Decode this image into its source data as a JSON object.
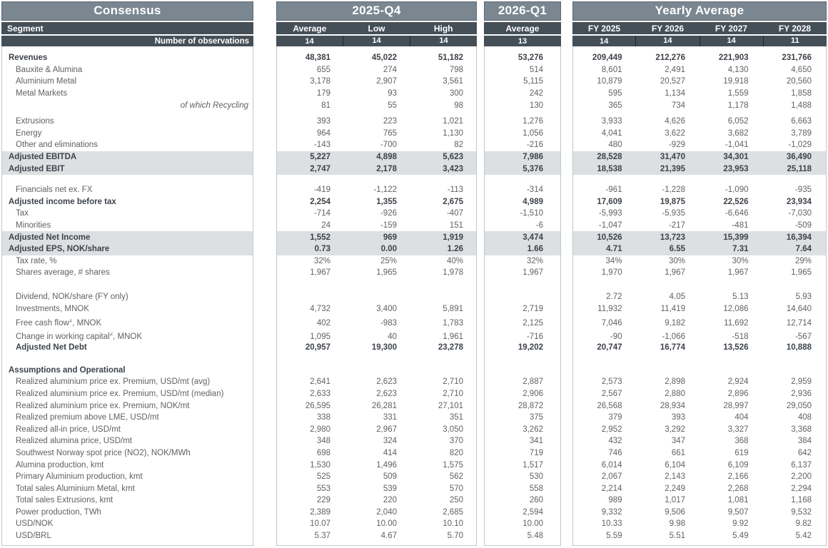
{
  "colors": {
    "title_bg": "#7a8791",
    "header_bg": "#454f58",
    "header_text": "#ffffff",
    "shade": "#dce0e3",
    "border": "#c2c7cb",
    "text": "#616161",
    "text_bold": "#3d434a"
  },
  "panels": {
    "consensus": {
      "title": "Consensus",
      "col_header": "Segment",
      "obs_header": "Number of observations"
    },
    "q4": {
      "title": "2025-Q4",
      "columns": [
        "Average",
        "Low",
        "High"
      ],
      "observations": [
        "14",
        "14",
        "14"
      ]
    },
    "q1": {
      "title": "2026-Q1",
      "columns": [
        "Average"
      ],
      "observations": [
        "13"
      ]
    },
    "yearly": {
      "title": "Yearly Average",
      "columns": [
        "FY 2025",
        "FY 2026",
        "FY 2027",
        "FY 2028"
      ],
      "observations": [
        "14",
        "14",
        "14",
        "11"
      ]
    }
  },
  "rows": [
    {
      "label": "Revenues",
      "style": "sect bold",
      "q4": [
        "48,381",
        "45,022",
        "51,182"
      ],
      "q1": [
        "53,276"
      ],
      "fy": [
        "209,449",
        "212,276",
        "221,903",
        "231,766"
      ]
    },
    {
      "label": "Bauxite & Alumina",
      "style": "",
      "q4": [
        "655",
        "274",
        "798"
      ],
      "q1": [
        "514"
      ],
      "fy": [
        "8,601",
        "2,491",
        "4,130",
        "4,650"
      ]
    },
    {
      "label": "Aluminium Metal",
      "style": "",
      "q4": [
        "3,178",
        "2,907",
        "3,561"
      ],
      "q1": [
        "5,115"
      ],
      "fy": [
        "10,879",
        "20,527",
        "19,918",
        "20,560"
      ]
    },
    {
      "label": "Metal Markets",
      "style": "",
      "q4": [
        "179",
        "93",
        "300"
      ],
      "q1": [
        "242"
      ],
      "fy": [
        "595",
        "1,134",
        "1,559",
        "1,858"
      ]
    },
    {
      "label": "of which Recycling",
      "style": "rightlab",
      "q4": [
        "81",
        "55",
        "98"
      ],
      "q1": [
        "130"
      ],
      "fy": [
        "365",
        "734",
        "1,178",
        "1,488"
      ]
    },
    {
      "spacer": 6
    },
    {
      "label": "Extrusions",
      "style": "",
      "q4": [
        "393",
        "223",
        "1,021"
      ],
      "q1": [
        "1,276"
      ],
      "fy": [
        "3,933",
        "4,626",
        "6,052",
        "6,663"
      ]
    },
    {
      "label": "Energy",
      "style": "",
      "q4": [
        "964",
        "765",
        "1,130"
      ],
      "q1": [
        "1,056"
      ],
      "fy": [
        "4,041",
        "3,622",
        "3,682",
        "3,789"
      ]
    },
    {
      "label": "Other and eliminations",
      "style": "",
      "q4": [
        "-143",
        "-700",
        "82"
      ],
      "q1": [
        "-216"
      ],
      "fy": [
        "480",
        "-929",
        "-1,041",
        "-1,029"
      ]
    },
    {
      "label": "Adjusted EBITDA",
      "style": "sect bold shaded",
      "q4": [
        "5,227",
        "4,898",
        "5,623"
      ],
      "q1": [
        "7,986"
      ],
      "fy": [
        "28,528",
        "31,470",
        "34,301",
        "36,490"
      ]
    },
    {
      "label": "Adjusted EBIT",
      "style": "sect bold shaded",
      "q4": [
        "2,747",
        "2,178",
        "3,423"
      ],
      "q1": [
        "5,376"
      ],
      "fy": [
        "18,538",
        "21,395",
        "23,953",
        "25,118"
      ]
    },
    {
      "spacer": 13
    },
    {
      "label": "Financials net ex. FX",
      "style": "",
      "q4": [
        "-419",
        "-1,122",
        "-113"
      ],
      "q1": [
        "-314"
      ],
      "fy": [
        "-961",
        "-1,228",
        "-1,090",
        "-935"
      ]
    },
    {
      "label": "Adjusted income before tax",
      "style": "sect bold",
      "q4": [
        "2,254",
        "1,355",
        "2,675"
      ],
      "q1": [
        "4,989"
      ],
      "fy": [
        "17,609",
        "19,875",
        "22,526",
        "23,934"
      ]
    },
    {
      "label": "Tax",
      "style": "",
      "q4": [
        "-714",
        "-926",
        "-407"
      ],
      "q1": [
        "-1,510"
      ],
      "fy": [
        "-5,993",
        "-5,935",
        "-6,646",
        "-7,030"
      ]
    },
    {
      "label": "Minorities",
      "style": "",
      "q4": [
        "24",
        "-159",
        "151"
      ],
      "q1": [
        "-6"
      ],
      "fy": [
        "-1,047",
        "-217",
        "-481",
        "-509"
      ]
    },
    {
      "label": "Adjusted Net Income",
      "style": "sect bold shaded",
      "q4": [
        "1,552",
        "969",
        "1,919"
      ],
      "q1": [
        "3,474"
      ],
      "fy": [
        "10,526",
        "13,723",
        "15,399",
        "16,394"
      ]
    },
    {
      "label": "Adjusted EPS, NOK/share",
      "style": "sect bold shaded",
      "q4": [
        "0.73",
        "0.00",
        "1.26"
      ],
      "q1": [
        "1.66"
      ],
      "fy": [
        "4.71",
        "6.55",
        "7.31",
        "7.64"
      ]
    },
    {
      "label": "Tax rate, %",
      "style": "",
      "q4": [
        "32%",
        "25%",
        "40%"
      ],
      "q1": [
        "32%"
      ],
      "fy": [
        "34%",
        "30%",
        "30%",
        "29%"
      ]
    },
    {
      "label": "Shares average, # shares",
      "style": "",
      "q4": [
        "1,967",
        "1,965",
        "1,978"
      ],
      "q1": [
        "1,967"
      ],
      "fy": [
        "1,970",
        "1,967",
        "1,967",
        "1,965"
      ]
    },
    {
      "spacer": 17
    },
    {
      "label": "Dividend, NOK/share (FY only)",
      "style": "",
      "q4": [
        "",
        "",
        ""
      ],
      "q1": [
        ""
      ],
      "fy": [
        "2.72",
        "4.05",
        "5.13",
        "5.93"
      ]
    },
    {
      "label": "Investments, MNOK",
      "style": "",
      "q4": [
        "4,732",
        "3,400",
        "5,891"
      ],
      "q1": [
        "2,719"
      ],
      "fy": [
        "11,932",
        "11,419",
        "12,086",
        "14,640"
      ]
    },
    {
      "label": "Free cash flow",
      "sup": "1",
      "suffix": ", MNOK",
      "style": "tall",
      "q4": [
        "402",
        "-983",
        "1,783"
      ],
      "q1": [
        "2,125"
      ],
      "fy": [
        "7,046",
        "9,182",
        "11,692",
        "12,714"
      ]
    },
    {
      "label": "Change in working capital",
      "sup": "2",
      "suffix": ", MNOK",
      "style": "tall",
      "q4": [
        "1,095",
        "40",
        "1,961"
      ],
      "q1": [
        "-716"
      ],
      "fy": [
        "-90",
        "-1,066",
        "-518",
        "-567"
      ]
    },
    {
      "label": "Adjusted Net Debt",
      "style": "boldind bold",
      "q4": [
        "20,957",
        "19,300",
        "23,278"
      ],
      "q1": [
        "19,202"
      ],
      "fy": [
        "20,747",
        "16,774",
        "13,526",
        "10,888"
      ]
    },
    {
      "spacer": 15
    },
    {
      "label": "Assumptions and Operational",
      "style": "sect bold",
      "q4": [
        "",
        "",
        ""
      ],
      "q1": [
        ""
      ],
      "fy": [
        "",
        "",
        "",
        ""
      ]
    },
    {
      "label": "Realized aluminium price ex. Premium, USD/mt (avg)",
      "style": "",
      "q4": [
        "2,641",
        "2,623",
        "2,710"
      ],
      "q1": [
        "2,887"
      ],
      "fy": [
        "2,573",
        "2,898",
        "2,924",
        "2,959"
      ]
    },
    {
      "label": "Realized aluminium price ex. Premium, USD/mt (median)",
      "style": "",
      "q4": [
        "2,633",
        "2,623",
        "2,710"
      ],
      "q1": [
        "2,906"
      ],
      "fy": [
        "2,567",
        "2,880",
        "2,896",
        "2,936"
      ]
    },
    {
      "label": "Realized aluminium price ex. Premium, NOK/mt",
      "style": "",
      "q4": [
        "26,595",
        "26,281",
        "27,101"
      ],
      "q1": [
        "28,872"
      ],
      "fy": [
        "26,568",
        "28,934",
        "28,997",
        "29,050"
      ]
    },
    {
      "label": "Realized premium above LME, USD/mt",
      "style": "",
      "q4": [
        "338",
        "331",
        "351"
      ],
      "q1": [
        "375"
      ],
      "fy": [
        "379",
        "393",
        "404",
        "408"
      ]
    },
    {
      "label": "Realized all-in price, USD/mt",
      "style": "",
      "q4": [
        "2,980",
        "2,967",
        "3,050"
      ],
      "q1": [
        "3,262"
      ],
      "fy": [
        "2,952",
        "3,292",
        "3,327",
        "3,368"
      ]
    },
    {
      "label": "Realized alumina price, USD/mt",
      "style": "",
      "q4": [
        "348",
        "324",
        "370"
      ],
      "q1": [
        "341"
      ],
      "fy": [
        "432",
        "347",
        "368",
        "384"
      ]
    },
    {
      "label": "Southwest Norway spot price (NO2), NOK/MWh",
      "style": "",
      "q4": [
        "698",
        "414",
        "820"
      ],
      "q1": [
        "719"
      ],
      "fy": [
        "746",
        "661",
        "619",
        "642"
      ]
    },
    {
      "label": "Alumina production, kmt",
      "style": "",
      "q4": [
        "1,530",
        "1,496",
        "1,575"
      ],
      "q1": [
        "1,517"
      ],
      "fy": [
        "6,014",
        "6,104",
        "6,109",
        "6,137"
      ]
    },
    {
      "label": "Primary Aluminium production, kmt",
      "style": "",
      "q4": [
        "525",
        "509",
        "562"
      ],
      "q1": [
        "530"
      ],
      "fy": [
        "2,067",
        "2,143",
        "2,166",
        "2,200"
      ]
    },
    {
      "label": "Total sales Aluminium Metal, kmt",
      "style": "",
      "q4": [
        "553",
        "539",
        "570"
      ],
      "q1": [
        "558"
      ],
      "fy": [
        "2,214",
        "2,249",
        "2,268",
        "2,294"
      ]
    },
    {
      "label": "Total sales Extrusions, kmt",
      "style": "",
      "q4": [
        "229",
        "220",
        "250"
      ],
      "q1": [
        "260"
      ],
      "fy": [
        "989",
        "1,017",
        "1,081",
        "1,168"
      ]
    },
    {
      "label": "Power production, TWh",
      "style": "",
      "q4": [
        "2,389",
        "2,040",
        "2,685"
      ],
      "q1": [
        "2,594"
      ],
      "fy": [
        "9,332",
        "9,506",
        "9,507",
        "9,532"
      ]
    },
    {
      "label": "USD/NOK",
      "style": "",
      "q4": [
        "10.07",
        "10.00",
        "10.10"
      ],
      "q1": [
        "10.00"
      ],
      "fy": [
        "10.33",
        "9.98",
        "9.92",
        "9.82"
      ]
    },
    {
      "label": "USD/BRL",
      "style": "",
      "q4": [
        "5.37",
        "4.67",
        "5.70"
      ],
      "q1": [
        "5.48"
      ],
      "fy": [
        "5.59",
        "5.51",
        "5.49",
        "5.42"
      ]
    }
  ]
}
